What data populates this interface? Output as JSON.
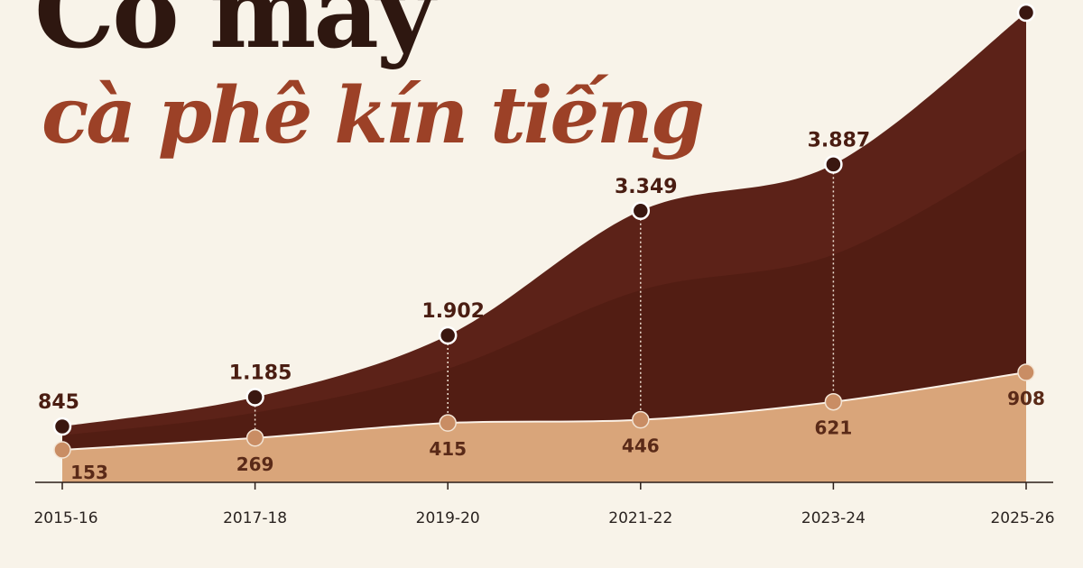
{
  "headline": {
    "line1": "Có mấy",
    "line2": "cà phê kín tiếng"
  },
  "colors": {
    "background": "#f8f3e9",
    "top_area": "#5c2218",
    "middle_band": "#4a1a11",
    "bottom_area": "#d9a57a",
    "top_marker": "#3a1710",
    "bottom_marker": "#c98d64",
    "headline_dark": "#2e1710",
    "headline_accent": "#9c4127"
  },
  "chart_data": {
    "type": "area",
    "categories": [
      "2015-16",
      "2017-18",
      "2019-20",
      "2021-22",
      "2023-24",
      "2025-26"
    ],
    "series": [
      {
        "values": [
          845,
          1185,
          1902,
          3349,
          3887,
          5650
        ]
      },
      {
        "values": [
          153,
          269,
          415,
          446,
          621,
          908
        ]
      }
    ],
    "labels_top": [
      "845",
      "1.185",
      "1.902",
      "3.349",
      "3.887"
    ],
    "labels_bottom": [
      "153",
      "269",
      "415",
      "446",
      "621",
      "908"
    ],
    "ylim": [
      0,
      5650
    ],
    "grid": false,
    "legend": "none"
  }
}
